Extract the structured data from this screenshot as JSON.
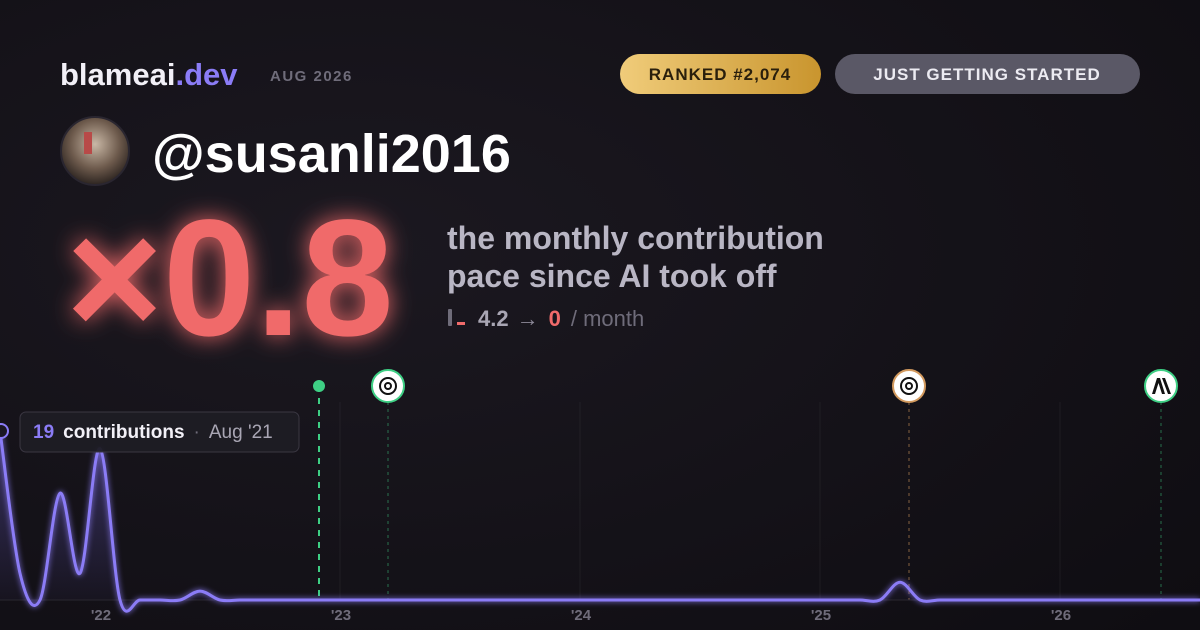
{
  "header": {
    "brand": "blameai",
    "brand_tld": ".dev",
    "date": "AUG 2026",
    "rank_badge": "RANKED #2,074",
    "status_badge": "JUST GETTING STARTED"
  },
  "user": {
    "handle": "@susanli2016"
  },
  "headline": {
    "multiplier": "×0.8",
    "caption_line1": "the monthly contribution",
    "caption_line2": "pace since AI took off",
    "before": "4.2",
    "arrow": "→",
    "after": "0",
    "unit": "/ month"
  },
  "tooltip": {
    "count": "19",
    "label": "contributions",
    "separator": "·",
    "month": "Aug '21"
  },
  "chart": {
    "x_labels": [
      "'22",
      "'23",
      "'24",
      "'25",
      "'26"
    ],
    "values": [
      19,
      3,
      0,
      12,
      3,
      17,
      0,
      0,
      0,
      0,
      1,
      0,
      0,
      0,
      0,
      0,
      0,
      0,
      0,
      0,
      0,
      0,
      0,
      0,
      0,
      0,
      0,
      0,
      0,
      0,
      0,
      0,
      0,
      0,
      0,
      0,
      0,
      0,
      0,
      0,
      0,
      0,
      0,
      0,
      0,
      2,
      0,
      0,
      0,
      0,
      0,
      0,
      0,
      0,
      0,
      0,
      0,
      0,
      0,
      0,
      0
    ]
  }
}
